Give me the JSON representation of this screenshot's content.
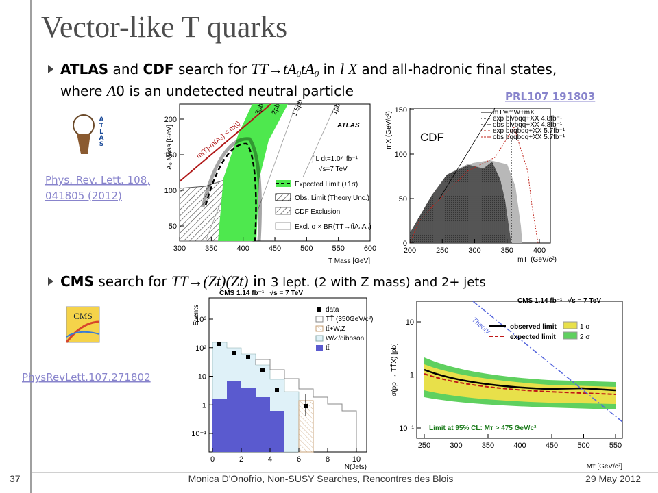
{
  "header": {
    "title": "Vector-like T quarks"
  },
  "bullets": [
    {
      "lines": [
        [
          "ATLAS",
          " and ",
          "CDF",
          " search for ",
          "TT→tA",
          "0",
          "tA",
          "0",
          " in ",
          "l X",
          " and all-hadronic final states,"
        ],
        [
          "where ",
          "A",
          "0 is an undetected neutral particle"
        ]
      ]
    },
    {
      "lines": [
        [
          "CMS",
          " search for ",
          "TT→(Zt)(Zt)",
          " in ",
          "3 lept. (2 with Z mass) and 2+ jets"
        ]
      ]
    }
  ],
  "links": [
    "PRL107 191803",
    "Phys. Rev. Lett. 108,",
    "041805 (2012)",
    "PhysRevLett.107.271802"
  ],
  "plots": [
    {
      "logo": "ATLAS",
      "experiment": "ATLAS",
      "ylabel": "A₀ Mass [GeV]",
      "xlabel": "T Mass [GeV]",
      "xticks": [
        300,
        350,
        400,
        450,
        500,
        550,
        600
      ],
      "yticks": [
        50,
        100,
        150,
        200
      ],
      "lumi": "∫ L dt=1.04 fb⁻¹",
      "energy": "√s=7 TeV",
      "curve_label": "m(T)-m(A₀) < m(t)",
      "contours": [
        "3pb",
        "2pb",
        "1.5pb",
        "1pb"
      ],
      "legend": [
        "Expected Limit (±1σ)",
        "Obs. Limit (Theory Unc.)",
        "CDF Exclusion",
        "Excl. σ × BR(TT̄→tt̄A₀A₀)"
      ]
    },
    {
      "label": "CDF",
      "ylabel": "mX (GeV/c²)",
      "xlabel": "mT' (GeV/c²)",
      "xticks": [
        200,
        250,
        300,
        350,
        400
      ],
      "yticks": [
        0,
        50,
        100,
        150
      ],
      "legend": [
        "mT'=mW+mX",
        "exp blvbqq+XX 4.8fb⁻¹",
        "obs blvbqq+XX 4.8fb⁻¹",
        "exp bqqbqq+XX 5.7fb⁻¹",
        "obs bqqbqq+XX 5.7fb⁻¹"
      ]
    },
    {
      "logo": "CMS",
      "header": "CMS 1.14 fb⁻¹   √s = 7 TeV",
      "ylabel": "Events",
      "xlabel": "N(Jets)",
      "xticks": [
        0,
        2,
        4,
        6,
        8,
        10
      ],
      "yticks": [
        {
          "value": 0.1,
          "label": "10⁻¹"
        },
        1,
        10,
        {
          "value": 100,
          "label": "10²"
        },
        {
          "value": 1000,
          "label": "10³"
        }
      ],
      "legend": [
        "data",
        "TT̄ (350GeV/c²)",
        "tt̄+W,Z",
        "W/Z/diboson",
        "tt̄"
      ]
    },
    {
      "header": "CMS 1.14 fb⁻¹   √s = 7 TeV",
      "ylabel": "σ(pp → TT̄X) [pb]",
      "xlabel": "Mᴛ [GeV/c²]",
      "xticks": [
        250,
        300,
        350,
        400,
        450,
        500,
        550
      ],
      "yticks": [
        {
          "value": 0.1,
          "label": "10⁻¹"
        },
        1,
        10
      ],
      "legend": [
        "observed limit",
        "expected limit",
        "1 σ",
        "2 σ"
      ],
      "theory": "Theory",
      "note": "Limit at 95% CL: Mᴛ > 475 GeV/c²"
    }
  ],
  "footer": {
    "page": "37",
    "author": "Monica D'Onofrio, Non-SUSY Searches, Rencontres des Blois",
    "date": "29 May 2012"
  }
}
